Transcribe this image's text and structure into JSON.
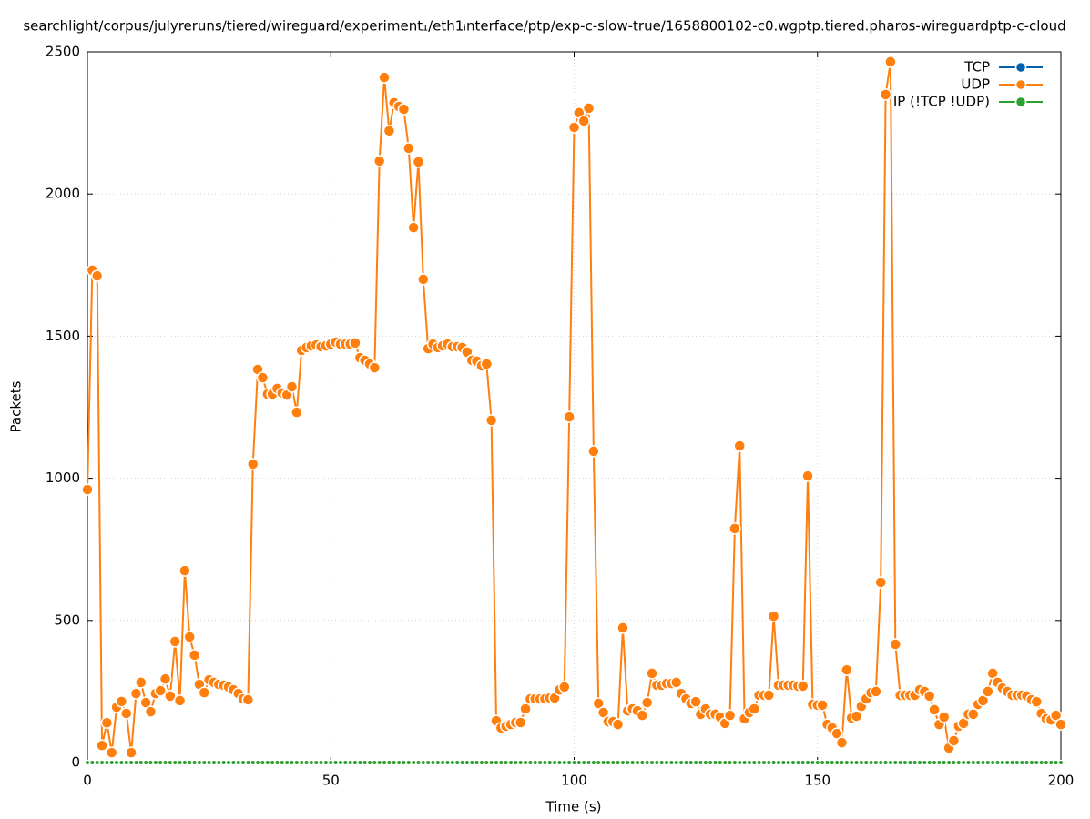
{
  "chart_data": {
    "type": "line",
    "title": "searchlight/corpus/julyreruns/tiered/wireguard/experiment₁/eth1ᵢnterface/ptp/exp-c-slow-true/1658800102-c0.wgptp.tiered.pharos-wireguardptp-c-cloud",
    "xlabel": "Time (s)",
    "ylabel": "Packets",
    "xlim": [
      0,
      200
    ],
    "xticks": [
      0,
      50,
      100,
      150,
      200
    ],
    "ylim": [
      0,
      2500
    ],
    "yticks": [
      0,
      500,
      1000,
      1500,
      2000,
      2500
    ],
    "grid": true,
    "legend": "top-right",
    "x": [
      0,
      1,
      2,
      3,
      4,
      5,
      6,
      7,
      8,
      9,
      10,
      11,
      12,
      13,
      14,
      15,
      16,
      17,
      18,
      19,
      20,
      21,
      22,
      23,
      24,
      25,
      26,
      27,
      28,
      29,
      30,
      31,
      32,
      33,
      34,
      35,
      36,
      37,
      38,
      39,
      40,
      41,
      42,
      43,
      44,
      45,
      46,
      47,
      48,
      49,
      50,
      51,
      52,
      53,
      54,
      55,
      56,
      57,
      58,
      59,
      60,
      61,
      62,
      63,
      64,
      65,
      66,
      67,
      68,
      69,
      70,
      71,
      72,
      73,
      74,
      75,
      76,
      77,
      78,
      79,
      80,
      81,
      82,
      83,
      84,
      85,
      86,
      87,
      88,
      89,
      90,
      91,
      92,
      93,
      94,
      95,
      96,
      97,
      98,
      99,
      100,
      101,
      102,
      103,
      104,
      105,
      106,
      107,
      108,
      109,
      110,
      111,
      112,
      113,
      114,
      115,
      116,
      117,
      118,
      119,
      120,
      121,
      122,
      123,
      124,
      125,
      126,
      127,
      128,
      129,
      130,
      131,
      132,
      133,
      134,
      135,
      136,
      137,
      138,
      139,
      140,
      141,
      142,
      143,
      144,
      145,
      146,
      147,
      148,
      149,
      150,
      151,
      152,
      153,
      154,
      155,
      156,
      157,
      158,
      159,
      160,
      161,
      162,
      163,
      164,
      165,
      166,
      167,
      168,
      169,
      170,
      171,
      172,
      173,
      174,
      175,
      176,
      177,
      178,
      179,
      180,
      181,
      182,
      183,
      184,
      185,
      186,
      187,
      188,
      189,
      190,
      191,
      192,
      193,
      194,
      195,
      196,
      197,
      198,
      199,
      200
    ],
    "series": [
      {
        "name": "TCP",
        "color": "#0060ad",
        "values": [
          0,
          0,
          0,
          0,
          0,
          0,
          0,
          0,
          0,
          0,
          0,
          0,
          0,
          0,
          0,
          0,
          0,
          0,
          0,
          0,
          0,
          0,
          0,
          0,
          0,
          0,
          0,
          0,
          0,
          0,
          0,
          0,
          0,
          0,
          0,
          0,
          0,
          0,
          0,
          0,
          0,
          0,
          0,
          0,
          0,
          0,
          0,
          0,
          0,
          0,
          0,
          0,
          0,
          0,
          0,
          0,
          0,
          0,
          0,
          0,
          0,
          0,
          0,
          0,
          0,
          0,
          0,
          0,
          0,
          0,
          0,
          0,
          0,
          0,
          0,
          0,
          0,
          0,
          0,
          0,
          0,
          0,
          0,
          0,
          0,
          0,
          0,
          0,
          0,
          0,
          0,
          0,
          0,
          0,
          0,
          0,
          0,
          0,
          0,
          0,
          0,
          0,
          0,
          0,
          0,
          0,
          0,
          0,
          0,
          0,
          0,
          0,
          0,
          0,
          0,
          0,
          0,
          0,
          0,
          0,
          0,
          0,
          0,
          0,
          0,
          0,
          0,
          0,
          0,
          0,
          0,
          0,
          0,
          0,
          0,
          0,
          0,
          0,
          0,
          0,
          0,
          0,
          0,
          0,
          0,
          0,
          0,
          0,
          0,
          0,
          0,
          0,
          0,
          0,
          0,
          0,
          0,
          0,
          0,
          0,
          0,
          0,
          0,
          0,
          0,
          0,
          0,
          0,
          0,
          0,
          0,
          0,
          0,
          0,
          0,
          0,
          0,
          0,
          0,
          0,
          0,
          0,
          0,
          0,
          0,
          0,
          0,
          0,
          0,
          0,
          0,
          0,
          0,
          0,
          0,
          0,
          0,
          0,
          0,
          0,
          0
        ]
      },
      {
        "name": "UDP",
        "color": "#ff7f0e",
        "values": [
          960,
          1732,
          1712,
          60,
          140,
          35,
          195,
          215,
          173,
          35,
          243,
          282,
          211,
          179,
          243,
          253,
          294,
          234,
          426,
          218,
          675,
          442,
          378,
          275,
          246,
          291,
          282,
          275,
          272,
          266,
          256,
          243,
          224,
          221,
          1050,
          1383,
          1354,
          1296,
          1296,
          1316,
          1300,
          1293,
          1322,
          1232,
          1450,
          1460,
          1466,
          1469,
          1463,
          1466,
          1472,
          1479,
          1472,
          1472,
          1472,
          1476,
          1424,
          1415,
          1402,
          1389,
          2116,
          2410,
          2222,
          2321,
          2308,
          2298,
          2161,
          1882,
          2113,
          1700,
          1456,
          1472,
          1460,
          1466,
          1472,
          1463,
          1463,
          1460,
          1444,
          1415,
          1412,
          1396,
          1402,
          1204,
          147,
          122,
          128,
          134,
          141,
          141,
          189,
          224,
          224,
          224,
          224,
          227,
          227,
          256,
          266,
          1216,
          2234,
          2286,
          2257,
          2302,
          1095,
          208,
          176,
          144,
          144,
          134,
          474,
          182,
          189,
          182,
          166,
          211,
          314,
          272,
          272,
          278,
          278,
          282,
          243,
          224,
          208,
          214,
          170,
          189,
          170,
          170,
          160,
          138,
          166,
          823,
          1114,
          154,
          176,
          189,
          237,
          237,
          237,
          515,
          272,
          272,
          272,
          272,
          269,
          269,
          1008,
          205,
          202,
          202,
          134,
          122,
          102,
          70,
          326,
          157,
          163,
          198,
          224,
          246,
          250,
          634,
          2350,
          2465,
          416,
          237,
          237,
          237,
          237,
          256,
          250,
          234,
          186,
          134,
          160,
          51,
          77,
          128,
          138,
          170,
          170,
          205,
          218,
          250,
          314,
          282,
          262,
          250,
          237,
          237,
          237,
          234,
          221,
          214,
          173,
          154,
          150,
          166,
          134
        ]
      },
      {
        "name": "IP (!TCP  !UDP)",
        "color": "#2ca02c",
        "values": [
          0,
          0,
          0,
          0,
          0,
          0,
          0,
          0,
          0,
          0,
          0,
          0,
          0,
          0,
          0,
          0,
          0,
          0,
          0,
          0,
          0,
          0,
          0,
          0,
          0,
          0,
          0,
          0,
          0,
          0,
          0,
          0,
          0,
          0,
          0,
          0,
          0,
          0,
          0,
          0,
          0,
          0,
          0,
          0,
          0,
          0,
          0,
          0,
          0,
          0,
          0,
          0,
          0,
          0,
          0,
          0,
          0,
          0,
          0,
          0,
          0,
          0,
          0,
          0,
          0,
          0,
          0,
          0,
          0,
          0,
          0,
          0,
          0,
          0,
          0,
          0,
          0,
          0,
          0,
          0,
          0,
          0,
          0,
          0,
          0,
          0,
          0,
          0,
          0,
          0,
          0,
          0,
          0,
          0,
          0,
          0,
          0,
          0,
          0,
          0,
          0,
          0,
          0,
          0,
          0,
          0,
          0,
          0,
          0,
          0,
          0,
          0,
          0,
          0,
          0,
          0,
          0,
          0,
          0,
          0,
          0,
          0,
          0,
          0,
          0,
          0,
          0,
          0,
          0,
          0,
          0,
          0,
          0,
          0,
          0,
          0,
          0,
          0,
          0,
          0,
          0,
          0,
          0,
          0,
          0,
          0,
          0,
          0,
          0,
          0,
          0,
          0,
          0,
          0,
          0,
          0,
          0,
          0,
          0,
          0,
          0,
          0,
          0,
          0,
          0,
          0,
          0,
          0,
          0,
          0,
          0,
          0,
          0,
          0,
          0,
          0,
          0,
          0,
          0,
          0,
          0,
          0,
          0,
          0,
          0,
          0,
          0,
          0,
          0,
          0,
          0,
          0,
          0,
          0,
          0,
          0,
          0,
          0,
          0,
          0,
          0
        ]
      }
    ]
  }
}
